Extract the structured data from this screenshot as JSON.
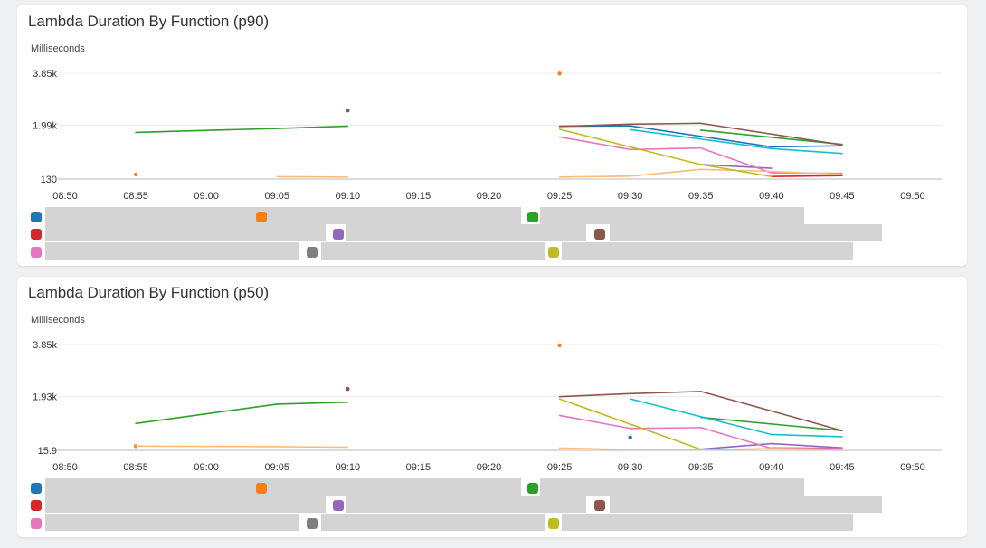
{
  "panels": [
    {
      "title": "Lambda Duration By Function (p90)",
      "unit": "Milliseconds",
      "legend_colors": [
        "#1f77b4",
        "#ff7f0e",
        "#2ca02c",
        "#d62728",
        "#9467bd",
        "#8c564b",
        "#e377c2",
        "#7f7f7f",
        "#bcbd22"
      ]
    },
    {
      "title": "Lambda Duration By Function (p50)",
      "unit": "Milliseconds",
      "legend_colors": [
        "#1f77b4",
        "#ff7f0e",
        "#2ca02c",
        "#d62728",
        "#9467bd",
        "#8c564b",
        "#e377c2",
        "#7f7f7f",
        "#bcbd22"
      ]
    }
  ],
  "chart_data": [
    {
      "type": "line",
      "title": "Lambda Duration By Function (p90)",
      "ylabel": "Milliseconds",
      "y_ticks": [
        "3.85k",
        "1.99k",
        "130"
      ],
      "ylim": [
        130,
        3850
      ],
      "x_ticks": [
        "08:50",
        "08:55",
        "09:00",
        "09:05",
        "09:10",
        "09:15",
        "09:20",
        "09:25",
        "09:30",
        "09:35",
        "09:40",
        "09:45",
        "09:50"
      ],
      "series": [
        {
          "color": "#1f77b4",
          "points": [
            [
              "09:25",
              1990
            ],
            [
              "09:30",
              2000
            ],
            [
              "09:40",
              1260
            ],
            [
              "09:45",
              1300
            ]
          ]
        },
        {
          "color": "#ff7f0e",
          "points": [
            [
              "08:55",
              290
            ],
            [
              "09:25",
              3840
            ]
          ]
        },
        {
          "color": "#2ca02c",
          "points": [
            [
              "08:55",
              1770
            ],
            [
              "09:05",
              1910
            ],
            [
              "09:10",
              1990
            ],
            [
              "09:35",
              1850
            ],
            [
              "09:45",
              1350
            ]
          ]
        },
        {
          "color": "#d62728",
          "points": [
            [
              "09:40",
              220
            ],
            [
              "09:45",
              250
            ]
          ]
        },
        {
          "color": "#9467bd",
          "points": [
            [
              "09:35",
              640
            ],
            [
              "09:40",
              510
            ]
          ]
        },
        {
          "color": "#8c564b",
          "points": [
            [
              "09:10",
              2540
            ],
            [
              "09:25",
              1980
            ],
            [
              "09:30",
              2060
            ],
            [
              "09:35",
              2090
            ],
            [
              "09:45",
              1330
            ]
          ]
        },
        {
          "color": "#e377c2",
          "points": [
            [
              "09:25",
              1610
            ],
            [
              "09:30",
              1170
            ],
            [
              "09:35",
              1220
            ],
            [
              "09:40",
              350
            ],
            [
              "09:45",
              330
            ]
          ]
        },
        {
          "color": "#ffbb78",
          "points": [
            [
              "09:05",
              210
            ],
            [
              "09:10",
              200
            ],
            [
              "09:25",
              200
            ],
            [
              "09:30",
              230
            ],
            [
              "09:35",
              470
            ],
            [
              "09:40",
              400
            ],
            [
              "09:45",
              290
            ]
          ]
        },
        {
          "color": "#17becf",
          "points": [
            [
              "09:30",
              1870
            ],
            [
              "09:40",
              1200
            ],
            [
              "09:45",
              1030
            ]
          ]
        },
        {
          "color": "#bcbd22",
          "points": [
            [
              "09:25",
              1880
            ],
            [
              "09:35",
              640
            ],
            [
              "09:40",
              220
            ]
          ]
        }
      ]
    },
    {
      "type": "line",
      "title": "Lambda Duration By Function (p50)",
      "ylabel": "Milliseconds",
      "y_ticks": [
        "3.85k",
        "1.93k",
        "15.9"
      ],
      "ylim": [
        15.9,
        3850
      ],
      "x_ticks": [
        "08:50",
        "08:55",
        "09:00",
        "09:05",
        "09:10",
        "09:15",
        "09:20",
        "09:25",
        "09:30",
        "09:35",
        "09:40",
        "09:45",
        "09:50"
      ],
      "series": [
        {
          "color": "#1f77b4",
          "points": [
            [
              "09:30",
              480
            ]
          ]
        },
        {
          "color": "#ff7f0e",
          "points": [
            [
              "08:55",
              170
            ],
            [
              "09:25",
              3820
            ]
          ]
        },
        {
          "color": "#2ca02c",
          "points": [
            [
              "08:55",
              990
            ],
            [
              "09:05",
              1690
            ],
            [
              "09:10",
              1760
            ],
            [
              "09:35",
              1210
            ],
            [
              "09:45",
              730
            ]
          ]
        },
        {
          "color": "#d62728",
          "points": [
            [
              "09:40",
              100
            ],
            [
              "09:45",
              90
            ]
          ]
        },
        {
          "color": "#9467bd",
          "points": [
            [
              "09:35",
              60
            ],
            [
              "09:40",
              260
            ],
            [
              "09:45",
              110
            ]
          ]
        },
        {
          "color": "#8c564b",
          "points": [
            [
              "09:10",
              2240
            ],
            [
              "09:25",
              1960
            ],
            [
              "09:30",
              2070
            ],
            [
              "09:35",
              2150
            ],
            [
              "09:45",
              730
            ]
          ]
        },
        {
          "color": "#e377c2",
          "points": [
            [
              "09:25",
              1280
            ],
            [
              "09:30",
              810
            ],
            [
              "09:35",
              840
            ],
            [
              "09:40",
              90
            ],
            [
              "09:45",
              80
            ]
          ]
        },
        {
          "color": "#ffbb78",
          "points": [
            [
              "08:55",
              170
            ],
            [
              "09:05",
              150
            ],
            [
              "09:10",
              130
            ],
            [
              "09:25",
              100
            ],
            [
              "09:30",
              40
            ],
            [
              "09:35",
              40
            ],
            [
              "09:40",
              80
            ],
            [
              "09:45",
              50
            ]
          ]
        },
        {
          "color": "#17becf",
          "points": [
            [
              "09:30",
              1880
            ],
            [
              "09:40",
              590
            ],
            [
              "09:45",
              510
            ]
          ]
        },
        {
          "color": "#bcbd22",
          "points": [
            [
              "09:25",
              1880
            ],
            [
              "09:35",
              50
            ]
          ]
        }
      ]
    }
  ]
}
